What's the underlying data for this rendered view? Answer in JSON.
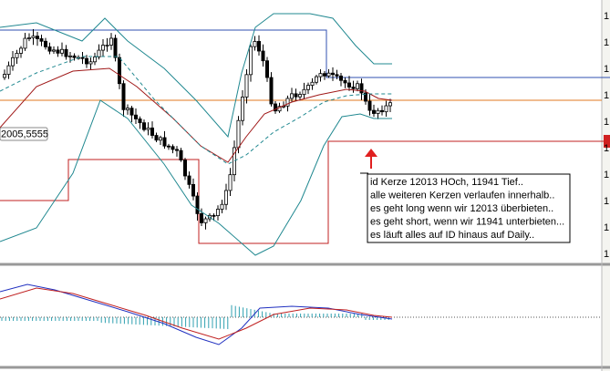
{
  "price_tag": "2005,5555",
  "note": {
    "lines": [
      "id Kerze 12013 HOch, 11941 Tief..",
      "alle weiteren Kerzen verlaufen innerhalb..",
      "es geht long wenn wir 12013 überbieten..",
      "es geht short, wenn wir 11941 unterbieten...",
      "es läuft alles auf ID hinaus auf Daily.."
    ]
  },
  "axis_fragments": [
    "1",
    "1",
    "1",
    "1",
    "1",
    "1",
    "1",
    "1",
    "1",
    "1"
  ]
}
